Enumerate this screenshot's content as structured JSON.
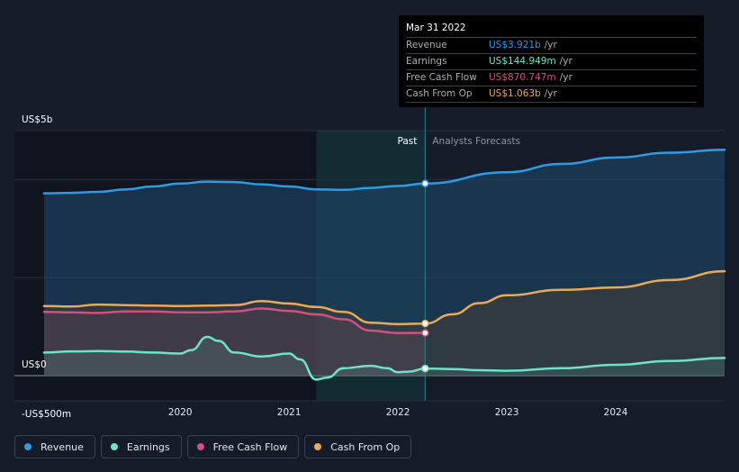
{
  "tooltip": {
    "date": "Mar 31 2022",
    "rows": [
      {
        "label": "Revenue",
        "value": "US$3.921b",
        "unit": "/yr",
        "color": "#2f9be5"
      },
      {
        "label": "Earnings",
        "value": "US$144.949m",
        "unit": "/yr",
        "color": "#6fe3c5"
      },
      {
        "label": "Free Cash Flow",
        "value": "US$870.747m",
        "unit": "/yr",
        "color": "#d0517f"
      },
      {
        "label": "Cash From Op",
        "value": "US$1.063b",
        "unit": "/yr",
        "color": "#e8a95a"
      }
    ]
  },
  "zones": {
    "past": "Past",
    "forecast": "Analysts Forecasts"
  },
  "legend": [
    {
      "label": "Revenue",
      "color": "#2f9be5"
    },
    {
      "label": "Earnings",
      "color": "#6fe3c5"
    },
    {
      "label": "Free Cash Flow",
      "color": "#d0517f"
    },
    {
      "label": "Cash From Op",
      "color": "#e8a95a"
    }
  ],
  "chart_data": {
    "type": "line",
    "y_unit": "US$ millions",
    "ylim": [
      -500,
      5000
    ],
    "y_tick_labels": [
      "US$5b",
      "US$0",
      "-US$500m"
    ],
    "x_tick_labels": [
      "2020",
      "2021",
      "2022",
      "2023",
      "2024"
    ],
    "x_ticks": [
      2020,
      2021,
      2022,
      2023,
      2024
    ],
    "xlim": [
      2018.75,
      2025.0
    ],
    "past_until": 2022.25,
    "highlight_from": 2021.25,
    "series": [
      {
        "name": "Revenue",
        "color": "#2f9be5",
        "points": [
          [
            2018.75,
            3720
          ],
          [
            2019.0,
            3730
          ],
          [
            2019.25,
            3750
          ],
          [
            2019.5,
            3800
          ],
          [
            2019.75,
            3860
          ],
          [
            2020.0,
            3920
          ],
          [
            2020.25,
            3960
          ],
          [
            2020.5,
            3950
          ],
          [
            2020.75,
            3900
          ],
          [
            2021.0,
            3860
          ],
          [
            2021.25,
            3800
          ],
          [
            2021.5,
            3790
          ],
          [
            2021.75,
            3830
          ],
          [
            2022.0,
            3870
          ],
          [
            2022.25,
            3921
          ]
        ]
      },
      {
        "name": "Revenue",
        "color": "#2f9be5",
        "points": [
          [
            2022.25,
            3921
          ],
          [
            2023.0,
            4150
          ],
          [
            2023.5,
            4320
          ],
          [
            2024.0,
            4450
          ],
          [
            2024.5,
            4550
          ],
          [
            2025.0,
            4610
          ]
        ]
      },
      {
        "name": "Earnings",
        "color": "#6fe3c5",
        "points": [
          [
            2018.75,
            470
          ],
          [
            2019.0,
            495
          ],
          [
            2019.25,
            500
          ],
          [
            2019.5,
            490
          ],
          [
            2019.75,
            470
          ],
          [
            2020.0,
            450
          ],
          [
            2020.1,
            520
          ],
          [
            2020.25,
            790
          ],
          [
            2020.35,
            710
          ],
          [
            2020.5,
            470
          ],
          [
            2020.75,
            390
          ],
          [
            2021.0,
            450
          ],
          [
            2021.1,
            330
          ],
          [
            2021.25,
            -80
          ],
          [
            2021.35,
            -40
          ],
          [
            2021.5,
            150
          ],
          [
            2021.75,
            200
          ],
          [
            2021.9,
            150
          ],
          [
            2022.0,
            70
          ],
          [
            2022.1,
            80
          ],
          [
            2022.25,
            145
          ]
        ]
      },
      {
        "name": "Earnings",
        "color": "#6fe3c5",
        "points": [
          [
            2022.25,
            145
          ],
          [
            2022.5,
            135
          ],
          [
            2022.75,
            110
          ],
          [
            2023.0,
            100
          ],
          [
            2023.5,
            150
          ],
          [
            2024.0,
            220
          ],
          [
            2024.5,
            300
          ],
          [
            2025.0,
            360
          ]
        ]
      },
      {
        "name": "Free Cash Flow",
        "color": "#d0517f",
        "points": [
          [
            2018.75,
            1300
          ],
          [
            2019.0,
            1290
          ],
          [
            2019.25,
            1280
          ],
          [
            2019.5,
            1310
          ],
          [
            2019.75,
            1310
          ],
          [
            2020.0,
            1290
          ],
          [
            2020.25,
            1290
          ],
          [
            2020.5,
            1310
          ],
          [
            2020.75,
            1370
          ],
          [
            2021.0,
            1320
          ],
          [
            2021.25,
            1250
          ],
          [
            2021.5,
            1150
          ],
          [
            2021.75,
            920
          ],
          [
            2022.0,
            870
          ],
          [
            2022.25,
            871
          ]
        ]
      },
      {
        "name": "Cash From Op",
        "color": "#e8a95a",
        "points": [
          [
            2018.75,
            1420
          ],
          [
            2019.0,
            1410
          ],
          [
            2019.25,
            1450
          ],
          [
            2019.5,
            1440
          ],
          [
            2019.75,
            1430
          ],
          [
            2020.0,
            1420
          ],
          [
            2020.25,
            1430
          ],
          [
            2020.5,
            1440
          ],
          [
            2020.75,
            1520
          ],
          [
            2021.0,
            1470
          ],
          [
            2021.25,
            1400
          ],
          [
            2021.5,
            1300
          ],
          [
            2021.75,
            1080
          ],
          [
            2022.0,
            1050
          ],
          [
            2022.25,
            1063
          ]
        ]
      },
      {
        "name": "Cash From Op",
        "color": "#e8a95a",
        "points": [
          [
            2022.25,
            1063
          ],
          [
            2022.5,
            1250
          ],
          [
            2022.75,
            1480
          ],
          [
            2023.0,
            1640
          ],
          [
            2023.5,
            1750
          ],
          [
            2024.0,
            1800
          ],
          [
            2024.5,
            1950
          ],
          [
            2025.0,
            2130
          ]
        ]
      }
    ]
  }
}
